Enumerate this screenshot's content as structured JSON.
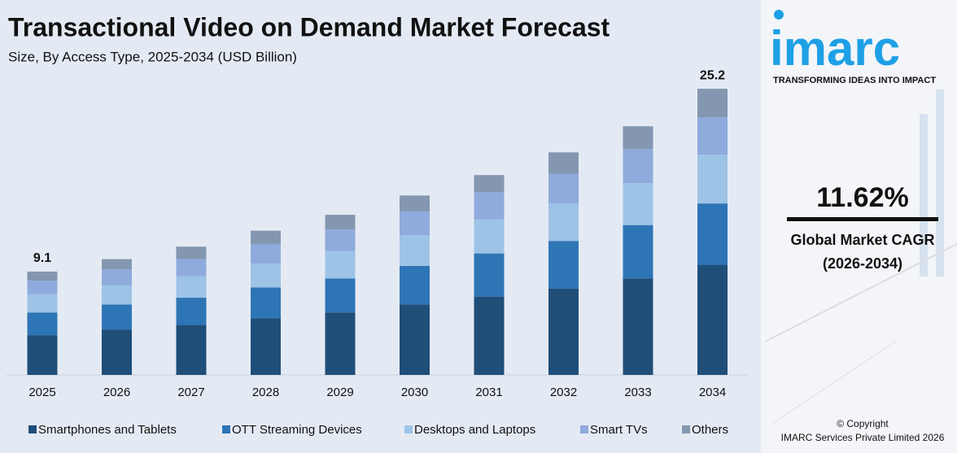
{
  "chart_data": {
    "type": "stacked_bar",
    "title": "Transactional Video on Demand Market Forecast",
    "subtitle": "Size, By Access Type, 2025-2034 (USD Billion)",
    "categories": [
      "2025",
      "2026",
      "2027",
      "2028",
      "2029",
      "2030",
      "2031",
      "2032",
      "2033",
      "2034"
    ],
    "series": [
      {
        "name": "Smartphones and Tablets",
        "color": "#1f4e79",
        "values": [
          3.5,
          4.0,
          4.4,
          5.0,
          5.5,
          6.2,
          6.9,
          7.6,
          8.5,
          9.7
        ]
      },
      {
        "name": "OTT Streaming Devices",
        "color": "#2e75b6",
        "values": [
          2.0,
          2.2,
          2.4,
          2.7,
          3.0,
          3.4,
          3.8,
          4.2,
          4.7,
          5.4
        ]
      },
      {
        "name": "Desktops and Laptops",
        "color": "#9dc3e6",
        "values": [
          1.6,
          1.7,
          1.9,
          2.1,
          2.4,
          2.7,
          3.0,
          3.3,
          3.7,
          4.3
        ]
      },
      {
        "name": "Smart TVs",
        "color": "#8faadc",
        "values": [
          1.2,
          1.4,
          1.5,
          1.7,
          1.9,
          2.1,
          2.4,
          2.6,
          3.0,
          3.3
        ]
      },
      {
        "name": "Others",
        "color": "#8497b0",
        "values": [
          0.8,
          0.9,
          1.1,
          1.2,
          1.3,
          1.4,
          1.5,
          1.9,
          2.0,
          2.5
        ]
      }
    ],
    "totals": [
      9.1,
      null,
      null,
      null,
      null,
      null,
      null,
      null,
      null,
      25.2
    ],
    "ylim": [
      0,
      26.5
    ]
  },
  "sidebar": {
    "logo": "imarc",
    "tagline": "TRANSFORMING IDEAS INTO IMPACT",
    "cagr": "11.62%",
    "cagr_label": "Global Market CAGR",
    "cagr_period": "(2026-2034)",
    "copyright": "© Copyright",
    "company": "IMARC Services Private Limited 2026"
  }
}
